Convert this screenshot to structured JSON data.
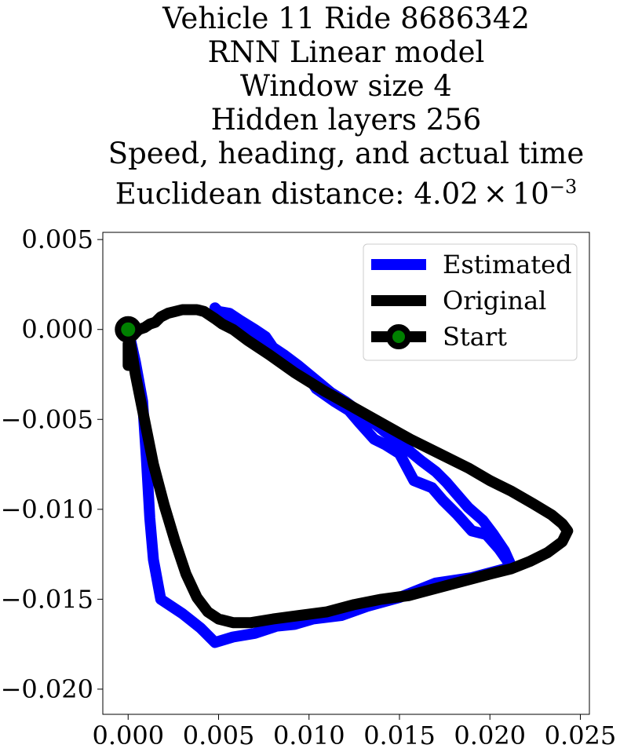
{
  "chart_data": {
    "type": "line",
    "title_lines": [
      "Vehicle 11 Ride 8686342",
      "RNN Linear model",
      "Window size 4",
      "Hidden layers 256",
      "Speed, heading, and actual time"
    ],
    "distance_label": "Euclidean distance: ",
    "distance_mantissa": "4.02",
    "distance_times": "×",
    "distance_base": "10",
    "distance_exponent": "−3",
    "xlim": [
      -0.0014,
      0.0255
    ],
    "ylim": [
      -0.0214,
      0.0054
    ],
    "x_ticks": [
      {
        "value": 0.0,
        "label": "0.000"
      },
      {
        "value": 0.005,
        "label": "0.005"
      },
      {
        "value": 0.01,
        "label": "0.010"
      },
      {
        "value": 0.015,
        "label": "0.015"
      },
      {
        "value": 0.02,
        "label": "0.020"
      },
      {
        "value": 0.025,
        "label": "0.025"
      }
    ],
    "y_ticks": [
      {
        "value": 0.005,
        "label": "0.005"
      },
      {
        "value": 0.0,
        "label": "0.000"
      },
      {
        "value": -0.005,
        "label": "−0.005"
      },
      {
        "value": -0.01,
        "label": "−0.010"
      },
      {
        "value": -0.015,
        "label": "−0.015"
      },
      {
        "value": -0.02,
        "label": "−0.020"
      }
    ],
    "grid": false,
    "legend_position": "top-right",
    "series": [
      {
        "name": "Estimated",
        "color": "#0000ff",
        "x": [
          0.0,
          0.0004,
          0.0008,
          0.001,
          0.0012,
          0.0014,
          0.0018,
          0.003,
          0.004,
          0.0048,
          0.0058,
          0.007,
          0.0082,
          0.0092,
          0.0102,
          0.0118,
          0.0132,
          0.015,
          0.017,
          0.019,
          0.0205,
          0.0212,
          0.0205,
          0.0198,
          0.019,
          0.0182,
          0.0174,
          0.0168,
          0.0158,
          0.015,
          0.0142,
          0.0136,
          0.0128,
          0.0122,
          0.0114,
          0.0104,
          0.0098,
          0.009,
          0.0082,
          0.0076,
          0.007,
          0.0064,
          0.0056,
          0.005,
          0.0048,
          0.005,
          0.0056,
          0.0062,
          0.007,
          0.0076,
          0.008,
          0.0086,
          0.0094,
          0.01,
          0.0106,
          0.0112,
          0.012,
          0.0128,
          0.0136,
          0.0142,
          0.015,
          0.0156,
          0.0162,
          0.017,
          0.0176,
          0.0182,
          0.0188,
          0.0196,
          0.0202,
          0.0208,
          0.0212
        ],
        "y": [
          0.0,
          -0.0018,
          -0.004,
          -0.007,
          -0.0105,
          -0.0128,
          -0.015,
          -0.0158,
          -0.0166,
          -0.0174,
          -0.0171,
          -0.0169,
          -0.0165,
          -0.0164,
          -0.0161,
          -0.0159,
          -0.0154,
          -0.0149,
          -0.0141,
          -0.0138,
          -0.0134,
          -0.0132,
          -0.0122,
          -0.0114,
          -0.0112,
          -0.0103,
          -0.0095,
          -0.0088,
          -0.0084,
          -0.0069,
          -0.0064,
          -0.0061,
          -0.0052,
          -0.0045,
          -0.004,
          -0.0033,
          -0.0024,
          -0.0019,
          -0.0014,
          -0.0009,
          -0.0004,
          0.0,
          0.0005,
          0.0008,
          0.0012,
          0.001,
          0.0009,
          0.0005,
          0.0,
          -0.0004,
          -0.001,
          -0.0014,
          -0.002,
          -0.0025,
          -0.003,
          -0.0035,
          -0.004,
          -0.0046,
          -0.0052,
          -0.0057,
          -0.0062,
          -0.0068,
          -0.0073,
          -0.0079,
          -0.0085,
          -0.0092,
          -0.0099,
          -0.0106,
          -0.0114,
          -0.0123,
          -0.0132
        ]
      },
      {
        "name": "Original",
        "color": "#000000",
        "x": [
          0.0,
          0.0004,
          0.0009,
          0.0014,
          0.002,
          0.0026,
          0.0032,
          0.0038,
          0.0044,
          0.005,
          0.0058,
          0.0068,
          0.008,
          0.0095,
          0.011,
          0.0125,
          0.014,
          0.0155,
          0.017,
          0.0185,
          0.02,
          0.0212,
          0.0222,
          0.0232,
          0.024,
          0.0243,
          0.024,
          0.0234,
          0.0224,
          0.0212,
          0.02,
          0.0188,
          0.0172,
          0.0156,
          0.014,
          0.0124,
          0.0108,
          0.0092,
          0.0078,
          0.0066,
          0.0058,
          0.0052,
          0.0048,
          0.0045,
          0.0042,
          0.0038,
          0.0034,
          0.003,
          0.0026,
          0.0022,
          0.0018,
          0.0015,
          0.0012,
          0.0009,
          0.0006,
          0.0003,
          0.0001,
          0.0,
          0.0,
          0.0,
          0.0,
          0.0
        ],
        "y": [
          0.0,
          -0.0025,
          -0.005,
          -0.0075,
          -0.0098,
          -0.0118,
          -0.0136,
          -0.0149,
          -0.0157,
          -0.0161,
          -0.0163,
          -0.0163,
          -0.0161,
          -0.0159,
          -0.0157,
          -0.0153,
          -0.015,
          -0.0148,
          -0.0144,
          -0.014,
          -0.0136,
          -0.0133,
          -0.0129,
          -0.0124,
          -0.0118,
          -0.0112,
          -0.0108,
          -0.0103,
          -0.0097,
          -0.009,
          -0.0084,
          -0.0077,
          -0.0069,
          -0.0061,
          -0.0052,
          -0.0043,
          -0.0034,
          -0.0024,
          -0.0014,
          -0.0006,
          0.0,
          0.0003,
          0.0006,
          0.0008,
          0.001,
          0.0011,
          0.0011,
          0.0011,
          0.001,
          0.0009,
          0.0007,
          0.0004,
          0.0003,
          0.0001,
          0.0,
          -0.0003,
          -0.0005,
          -0.0008,
          -0.0012,
          -0.0016,
          -0.002,
          -0.002
        ]
      }
    ],
    "start_point": {
      "name": "Start",
      "x": 0.0,
      "y": 0.0,
      "edge_color": "#000000",
      "fill_color": "#008000"
    }
  }
}
